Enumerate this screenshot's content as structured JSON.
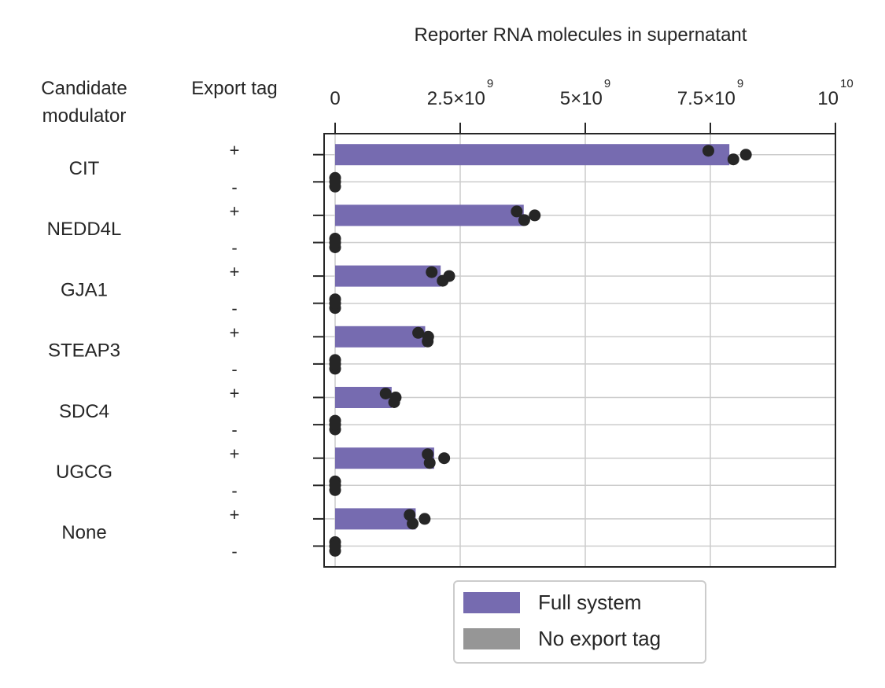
{
  "chart_data": {
    "type": "bar",
    "orientation": "horizontal",
    "title": "Reporter RNA molecules in supernatant",
    "xlim": [
      0,
      10000000000
    ],
    "x_ticks": [
      {
        "value": 0,
        "label": "0",
        "exp": ""
      },
      {
        "value": 2500000000,
        "label": "2.5×10",
        "exp": "9"
      },
      {
        "value": 5000000000,
        "label": "5×10",
        "exp": "9"
      },
      {
        "value": 7500000000,
        "label": "7.5×10",
        "exp": "9"
      },
      {
        "value": 10000000000,
        "label": "10",
        "exp": "10"
      }
    ],
    "x_axis_position": "top",
    "grid": true,
    "column_headers": {
      "modulator": [
        "Candidate",
        "modulator"
      ],
      "export_tag": "Export tag"
    },
    "rows": [
      {
        "modulator": "CIT",
        "plus": {
          "sign": "+",
          "value": 7880000000,
          "points": [
            7460000000,
            7960000000,
            8210000000
          ]
        },
        "minus": {
          "sign": "-",
          "value": 0,
          "points": [
            0,
            0,
            0
          ]
        }
      },
      {
        "modulator": "NEDD4L",
        "plus": {
          "sign": "+",
          "value": 3770000000,
          "points": [
            3630000000,
            3780000000,
            3990000000
          ]
        },
        "minus": {
          "sign": "-",
          "value": 0,
          "points": [
            0,
            0,
            0
          ]
        }
      },
      {
        "modulator": "GJA1",
        "plus": {
          "sign": "+",
          "value": 2110000000,
          "points": [
            1930000000,
            2150000000,
            2280000000
          ]
        },
        "minus": {
          "sign": "-",
          "value": 0,
          "points": [
            0,
            0,
            0
          ]
        }
      },
      {
        "modulator": "STEAP3",
        "plus": {
          "sign": "+",
          "value": 1800000000,
          "points": [
            1660000000,
            1850000000,
            1860000000
          ]
        },
        "minus": {
          "sign": "-",
          "value": 0,
          "points": [
            0,
            0,
            0
          ]
        }
      },
      {
        "modulator": "SDC4",
        "plus": {
          "sign": "+",
          "value": 1130000000,
          "points": [
            1010000000,
            1180000000,
            1210000000
          ]
        },
        "minus": {
          "sign": "-",
          "value": 0,
          "points": [
            0,
            0,
            0
          ]
        }
      },
      {
        "modulator": "UGCG",
        "plus": {
          "sign": "+",
          "value": 1980000000,
          "points": [
            1850000000,
            1890000000,
            2180000000
          ]
        },
        "minus": {
          "sign": "-",
          "value": 0,
          "points": [
            0,
            0,
            0
          ]
        }
      },
      {
        "modulator": "None",
        "plus": {
          "sign": "+",
          "value": 1610000000,
          "points": [
            1490000000,
            1550000000,
            1790000000
          ]
        },
        "minus": {
          "sign": "-",
          "value": 0,
          "points": [
            0,
            0,
            0
          ]
        }
      }
    ],
    "legend": {
      "placement": "bottom-center",
      "entries": [
        {
          "name": "Full system",
          "color": "#766bb0"
        },
        {
          "name": "No export tag",
          "color": "#969696"
        }
      ]
    },
    "colors": {
      "full": "#766bb0",
      "none": "#969696",
      "point": "#262626",
      "grid": "#cccccc"
    }
  }
}
